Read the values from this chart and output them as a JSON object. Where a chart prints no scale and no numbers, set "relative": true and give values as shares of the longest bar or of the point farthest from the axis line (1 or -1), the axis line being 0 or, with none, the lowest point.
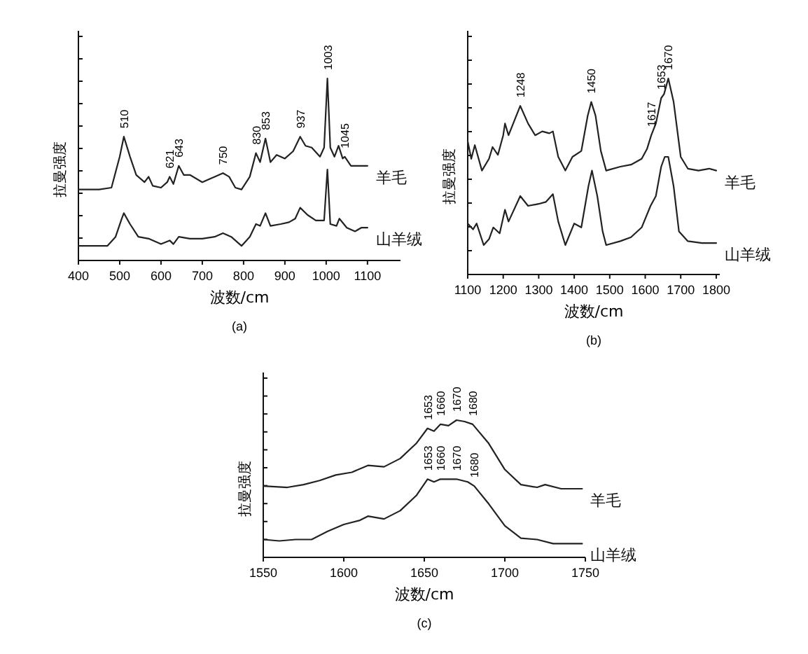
{
  "chart_data": [
    {
      "type": "line",
      "title": "(a)",
      "xlabel": "波数/cm",
      "ylabel": "拉曼强度",
      "relative": true,
      "xlim": [
        400,
        1180
      ],
      "xticks": [
        400,
        500,
        600,
        700,
        800,
        900,
        1000,
        1100
      ],
      "series": [
        {
          "name": "羊毛",
          "color": "#222222",
          "x": [
            400,
            450,
            480,
            500,
            510,
            525,
            540,
            560,
            570,
            580,
            600,
            615,
            621,
            630,
            643,
            655,
            670,
            700,
            730,
            750,
            765,
            780,
            795,
            815,
            830,
            840,
            853,
            865,
            880,
            900,
            920,
            937,
            950,
            965,
            985,
            995,
            1003,
            1010,
            1020,
            1030,
            1040,
            1045,
            1060,
            1080,
            1100
          ],
          "values": [
            0.39,
            0.39,
            0.4,
            0.57,
            0.68,
            0.57,
            0.47,
            0.43,
            0.46,
            0.41,
            0.4,
            0.43,
            0.46,
            0.42,
            0.52,
            0.47,
            0.47,
            0.43,
            0.46,
            0.48,
            0.46,
            0.4,
            0.39,
            0.46,
            0.59,
            0.54,
            0.67,
            0.54,
            0.58,
            0.56,
            0.6,
            0.68,
            0.63,
            0.62,
            0.57,
            0.62,
            1.0,
            0.62,
            0.57,
            0.63,
            0.56,
            0.57,
            0.52,
            0.52,
            0.52
          ]
        },
        {
          "name": "山羊绒",
          "color": "#222222",
          "x": [
            400,
            470,
            490,
            505,
            510,
            525,
            545,
            570,
            600,
            621,
            630,
            643,
            670,
            700,
            730,
            750,
            770,
            795,
            815,
            830,
            840,
            853,
            865,
            890,
            910,
            925,
            937,
            955,
            975,
            995,
            1003,
            1010,
            1025,
            1032,
            1050,
            1070,
            1085,
            1100
          ],
          "values": [
            0.08,
            0.08,
            0.13,
            0.23,
            0.26,
            0.2,
            0.13,
            0.12,
            0.09,
            0.11,
            0.09,
            0.13,
            0.12,
            0.12,
            0.13,
            0.15,
            0.13,
            0.08,
            0.13,
            0.2,
            0.19,
            0.26,
            0.19,
            0.2,
            0.21,
            0.23,
            0.29,
            0.25,
            0.22,
            0.22,
            0.5,
            0.2,
            0.19,
            0.23,
            0.18,
            0.16,
            0.18,
            0.18
          ]
        }
      ],
      "annotations": [
        {
          "text": "510",
          "x": 510,
          "y": 0.68
        },
        {
          "text": "621",
          "x": 621,
          "y": 0.46
        },
        {
          "text": "643",
          "x": 643,
          "y": 0.52
        },
        {
          "text": "750",
          "x": 750,
          "y": 0.48
        },
        {
          "text": "830",
          "x": 830,
          "y": 0.59
        },
        {
          "text": "853",
          "x": 853,
          "y": 0.67
        },
        {
          "text": "937",
          "x": 937,
          "y": 0.68
        },
        {
          "text": "1003",
          "x": 1003,
          "y": 1.0
        },
        {
          "text": "1045",
          "x": 1045,
          "y": 0.57
        }
      ]
    },
    {
      "type": "line",
      "title": "(b)",
      "xlabel": "波数/cm",
      "ylabel": "拉曼强度",
      "relative": true,
      "xlim": [
        1100,
        1810
      ],
      "xticks": [
        1100,
        1200,
        1300,
        1400,
        1500,
        1600,
        1700,
        1800
      ],
      "series": [
        {
          "name": "羊毛",
          "color": "#222222",
          "x": [
            1100,
            1110,
            1120,
            1140,
            1160,
            1170,
            1185,
            1200,
            1205,
            1215,
            1248,
            1270,
            1290,
            1310,
            1330,
            1340,
            1355,
            1375,
            1395,
            1420,
            1438,
            1448,
            1460,
            1475,
            1490,
            1530,
            1560,
            1590,
            1605,
            1617,
            1630,
            1645,
            1653,
            1665,
            1680,
            1700,
            1720,
            1750,
            1780,
            1800
          ],
          "values": [
            0.68,
            0.59,
            0.66,
            0.53,
            0.59,
            0.65,
            0.61,
            0.71,
            0.77,
            0.71,
            0.86,
            0.77,
            0.71,
            0.73,
            0.72,
            0.73,
            0.6,
            0.53,
            0.6,
            0.63,
            0.81,
            0.88,
            0.81,
            0.63,
            0.53,
            0.55,
            0.56,
            0.59,
            0.64,
            0.71,
            0.77,
            0.9,
            0.92,
            1.0,
            0.88,
            0.6,
            0.54,
            0.53,
            0.54,
            0.53
          ]
        },
        {
          "name": "山羊绒",
          "color": "#222222",
          "x": [
            1100,
            1115,
            1125,
            1145,
            1160,
            1172,
            1190,
            1205,
            1215,
            1248,
            1270,
            1300,
            1320,
            1340,
            1355,
            1375,
            1400,
            1420,
            1440,
            1450,
            1465,
            1480,
            1490,
            1530,
            1560,
            1590,
            1615,
            1630,
            1645,
            1655,
            1665,
            1680,
            1695,
            1720,
            1760,
            1800
          ],
          "values": [
            0.26,
            0.23,
            0.26,
            0.15,
            0.18,
            0.24,
            0.21,
            0.33,
            0.27,
            0.4,
            0.35,
            0.36,
            0.37,
            0.41,
            0.27,
            0.15,
            0.26,
            0.24,
            0.45,
            0.53,
            0.4,
            0.22,
            0.15,
            0.17,
            0.19,
            0.24,
            0.35,
            0.4,
            0.55,
            0.6,
            0.6,
            0.45,
            0.22,
            0.17,
            0.16,
            0.16
          ]
        }
      ],
      "annotations": [
        {
          "text": "1248",
          "x": 1248,
          "y": 0.86
        },
        {
          "text": "1450",
          "x": 1448,
          "y": 0.88
        },
        {
          "text": "1617",
          "x": 1617,
          "y": 0.71
        },
        {
          "text": "1653",
          "x": 1645,
          "y": 0.9
        },
        {
          "text": "1670",
          "x": 1665,
          "y": 1.0
        }
      ]
    },
    {
      "type": "line",
      "title": "(c)",
      "xlabel": "波数/cm",
      "ylabel": "拉曼强度",
      "relative": true,
      "xlim": [
        1550,
        1750
      ],
      "xticks": [
        1550,
        1600,
        1650,
        1700,
        1750
      ],
      "series": [
        {
          "name": "羊毛",
          "color": "#222222",
          "x": [
            1550,
            1565,
            1575,
            1585,
            1595,
            1605,
            1615,
            1625,
            1635,
            1645,
            1652,
            1656,
            1660,
            1665,
            1670,
            1675,
            1680,
            1690,
            1700,
            1710,
            1720,
            1725,
            1735,
            1748
          ],
          "values": [
            0.52,
            0.51,
            0.53,
            0.56,
            0.6,
            0.62,
            0.67,
            0.66,
            0.72,
            0.83,
            0.94,
            0.92,
            0.97,
            0.96,
            1.0,
            0.99,
            0.97,
            0.83,
            0.64,
            0.53,
            0.51,
            0.53,
            0.5,
            0.5
          ]
        },
        {
          "name": "山羊绒",
          "color": "#222222",
          "x": [
            1550,
            1560,
            1570,
            1580,
            1590,
            1600,
            1610,
            1615,
            1625,
            1635,
            1645,
            1652,
            1656,
            1660,
            1670,
            1677,
            1681,
            1690,
            1700,
            1710,
            1720,
            1730,
            1748
          ],
          "values": [
            0.13,
            0.12,
            0.13,
            0.13,
            0.19,
            0.24,
            0.27,
            0.3,
            0.28,
            0.34,
            0.45,
            0.57,
            0.55,
            0.57,
            0.57,
            0.55,
            0.52,
            0.39,
            0.23,
            0.14,
            0.13,
            0.1,
            0.1
          ]
        }
      ],
      "annotations": [
        {
          "text": "1653",
          "x": 1652,
          "y": 0.94
        },
        {
          "text": "1660",
          "x": 1660,
          "y": 0.97
        },
        {
          "text": "1670",
          "x": 1670,
          "y": 1.0
        },
        {
          "text": "1680",
          "x": 1680,
          "y": 0.97
        },
        {
          "text": "1653",
          "x": 1652,
          "y": 0.57
        },
        {
          "text": "1660",
          "x": 1660,
          "y": 0.57
        },
        {
          "text": "1670",
          "x": 1670,
          "y": 0.57
        },
        {
          "text": "1680",
          "x": 1681,
          "y": 0.52
        }
      ]
    }
  ]
}
